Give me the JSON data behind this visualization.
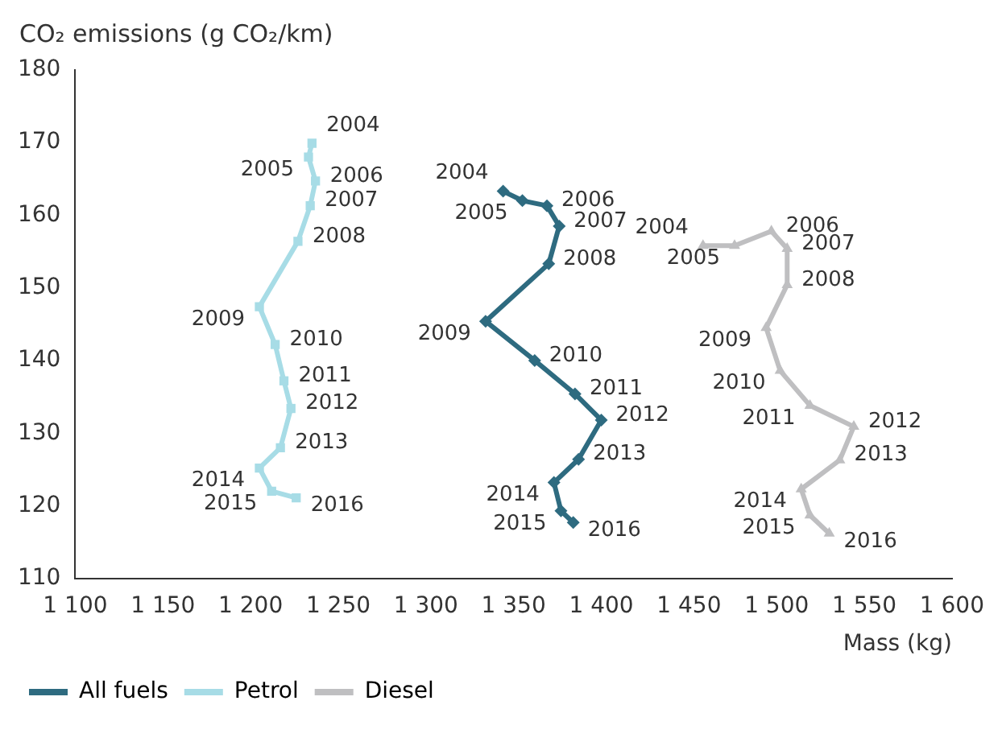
{
  "chart_data": {
    "type": "line",
    "ylabel": "CO₂ emissions (g CO₂/km)",
    "xlabel": "Mass (kg)",
    "xlim": [
      1100,
      1600
    ],
    "xticks": [
      {
        "value": 1100,
        "label": "1 100"
      },
      {
        "value": 1150,
        "label": "1 150"
      },
      {
        "value": 1200,
        "label": "1 200"
      },
      {
        "value": 1250,
        "label": "1 250"
      },
      {
        "value": 1300,
        "label": "1 300"
      },
      {
        "value": 1350,
        "label": "1 350"
      },
      {
        "value": 1400,
        "label": "1 400"
      },
      {
        "value": 1450,
        "label": "1 450"
      },
      {
        "value": 1500,
        "label": "1 500"
      },
      {
        "value": 1550,
        "label": "1 550"
      },
      {
        "value": 1600,
        "label": "1 600"
      }
    ],
    "ylim": [
      110,
      180
    ],
    "yticks": [
      110,
      120,
      130,
      140,
      150,
      160,
      170,
      180
    ],
    "grid": false,
    "legend": "bottom",
    "line_style": "solid",
    "series": [
      {
        "name": "All fuels",
        "color": "#2e6b80",
        "marker": "diamond",
        "x": [
          1344,
          1355,
          1369,
          1376,
          1370,
          1334,
          1362,
          1385,
          1400,
          1387,
          1373,
          1377,
          1384
        ],
        "values": [
          163.3,
          162,
          161.3,
          158.5,
          153.3,
          145.4,
          140,
          135.4,
          131.8,
          126.4,
          123.2,
          119.3,
          117.7
        ]
      },
      {
        "name": "Petrol",
        "color": "#a7dce6",
        "marker": "square",
        "x": [
          1235,
          1233,
          1237,
          1234,
          1227,
          1205,
          1214,
          1219,
          1223,
          1217,
          1205,
          1212,
          1226
        ],
        "values": [
          169.9,
          168,
          164.7,
          161.3,
          156.4,
          147.4,
          142.2,
          137.2,
          133.4,
          128,
          125.2,
          122,
          121.1
        ]
      },
      {
        "name": "Diesel",
        "color": "#bfbfc1",
        "marker": "triangle",
        "x": [
          1458,
          1476,
          1497,
          1506,
          1506,
          1494,
          1502,
          1519,
          1544,
          1536,
          1514,
          1519,
          1530
        ],
        "values": [
          155.8,
          155.8,
          157.8,
          155.4,
          150.4,
          144.5,
          138.6,
          133.8,
          130.9,
          126.3,
          122.3,
          118.7,
          116.2
        ]
      }
    ],
    "annotations": [
      {
        "text": "2004",
        "x": 1344,
        "y": 163.3
      },
      {
        "text": "2005",
        "x": 1355,
        "y": 162
      },
      {
        "text": "2006",
        "x": 1369,
        "y": 161.3
      },
      {
        "text": "2007",
        "x": 1376,
        "y": 158.5
      },
      {
        "text": "2008",
        "x": 1370,
        "y": 153.3
      },
      {
        "text": "2009",
        "x": 1334,
        "y": 145.4
      },
      {
        "text": "2010",
        "x": 1362,
        "y": 140
      },
      {
        "text": "2011",
        "x": 1385,
        "y": 135.4
      },
      {
        "text": "2012",
        "x": 1400,
        "y": 131.8
      },
      {
        "text": "2013",
        "x": 1387,
        "y": 126.4
      },
      {
        "text": "2014",
        "x": 1373,
        "y": 123.2
      },
      {
        "text": "2015",
        "x": 1377,
        "y": 119.3
      },
      {
        "text": "2016",
        "x": 1384,
        "y": 117.7
      },
      {
        "text": "2004",
        "x": 1235,
        "y": 169.9
      },
      {
        "text": "2005",
        "x": 1233,
        "y": 168
      },
      {
        "text": "2006",
        "x": 1237,
        "y": 164.7
      },
      {
        "text": "2007",
        "x": 1234,
        "y": 161.3
      },
      {
        "text": "2008",
        "x": 1227,
        "y": 156.4
      },
      {
        "text": "2009",
        "x": 1205,
        "y": 147.4
      },
      {
        "text": "2010",
        "x": 1214,
        "y": 142.2
      },
      {
        "text": "2011",
        "x": 1219,
        "y": 137.2
      },
      {
        "text": "2012",
        "x": 1223,
        "y": 133.4
      },
      {
        "text": "2013",
        "x": 1217,
        "y": 128
      },
      {
        "text": "2014",
        "x": 1205,
        "y": 125.2
      },
      {
        "text": "2015",
        "x": 1212,
        "y": 122
      },
      {
        "text": "2016",
        "x": 1226,
        "y": 121.1
      },
      {
        "text": "2004",
        "x": 1458,
        "y": 155.8
      },
      {
        "text": "2005",
        "x": 1476,
        "y": 155.8
      },
      {
        "text": "2006",
        "x": 1497,
        "y": 157.8
      },
      {
        "text": "2007",
        "x": 1506,
        "y": 155.4
      },
      {
        "text": "2008",
        "x": 1506,
        "y": 150.4
      },
      {
        "text": "2009",
        "x": 1494,
        "y": 144.5
      },
      {
        "text": "2010",
        "x": 1502,
        "y": 138.6
      },
      {
        "text": "2011",
        "x": 1519,
        "y": 133.8
      },
      {
        "text": "2012",
        "x": 1544,
        "y": 130.9
      },
      {
        "text": "2013",
        "x": 1536,
        "y": 126.3
      },
      {
        "text": "2014",
        "x": 1514,
        "y": 122.3
      },
      {
        "text": "2015",
        "x": 1519,
        "y": 118.7
      },
      {
        "text": "2016",
        "x": 1530,
        "y": 116.2
      }
    ]
  }
}
